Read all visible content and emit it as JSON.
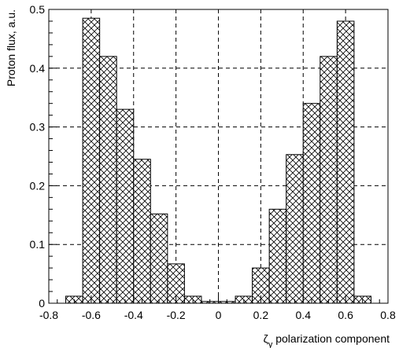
{
  "chart_data": {
    "type": "bar",
    "title": "",
    "xlabel_symbol": "ζ",
    "xlabel_subscript": "y",
    "xlabel_rest": " polarization component",
    "ylabel": "Proton flux, a.u.",
    "xlim": [
      -0.8,
      0.8
    ],
    "ylim": [
      0,
      0.5
    ],
    "xticks": [
      "-0.8",
      "-0.6",
      "-0.4",
      "-0.2",
      "0",
      "0.2",
      "0.4",
      "0.6",
      "0.8"
    ],
    "yticks": [
      "0",
      "0.1",
      "0.2",
      "0.3",
      "0.4",
      "0.5"
    ],
    "grid": true,
    "bin_width": 0.08,
    "bin_edges_start": -0.72,
    "values": [
      0.012,
      0.485,
      0.42,
      0.33,
      0.245,
      0.152,
      0.067,
      0.012,
      0.003,
      0.003,
      0.012,
      0.06,
      0.16,
      0.253,
      0.34,
      0.42,
      0.48,
      0.012
    ],
    "fill_pattern": "crosshatch",
    "colors": {
      "bar_edge": "#000000",
      "hatch": "#000000",
      "grid": "#000000",
      "background": "#ffffff"
    }
  }
}
